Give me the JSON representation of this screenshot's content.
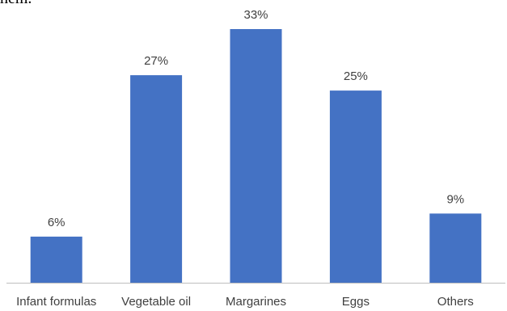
{
  "header_fragment": "hem.",
  "colors": {
    "bar": "#4472C4",
    "text": "#404040",
    "axis": "#BFBFBF"
  },
  "chart_data": {
    "type": "bar",
    "title": "",
    "xlabel": "",
    "ylabel": "",
    "categories": [
      "Infant formulas",
      "Vegetable oil",
      "Margarines",
      "Eggs",
      "Others"
    ],
    "values": [
      6,
      27,
      33,
      25,
      9
    ],
    "value_labels": [
      "6%",
      "27%",
      "33%",
      "25%",
      "9%"
    ],
    "unit": "%",
    "ylim": [
      0,
      33
    ],
    "grid": false,
    "legend": "none"
  }
}
